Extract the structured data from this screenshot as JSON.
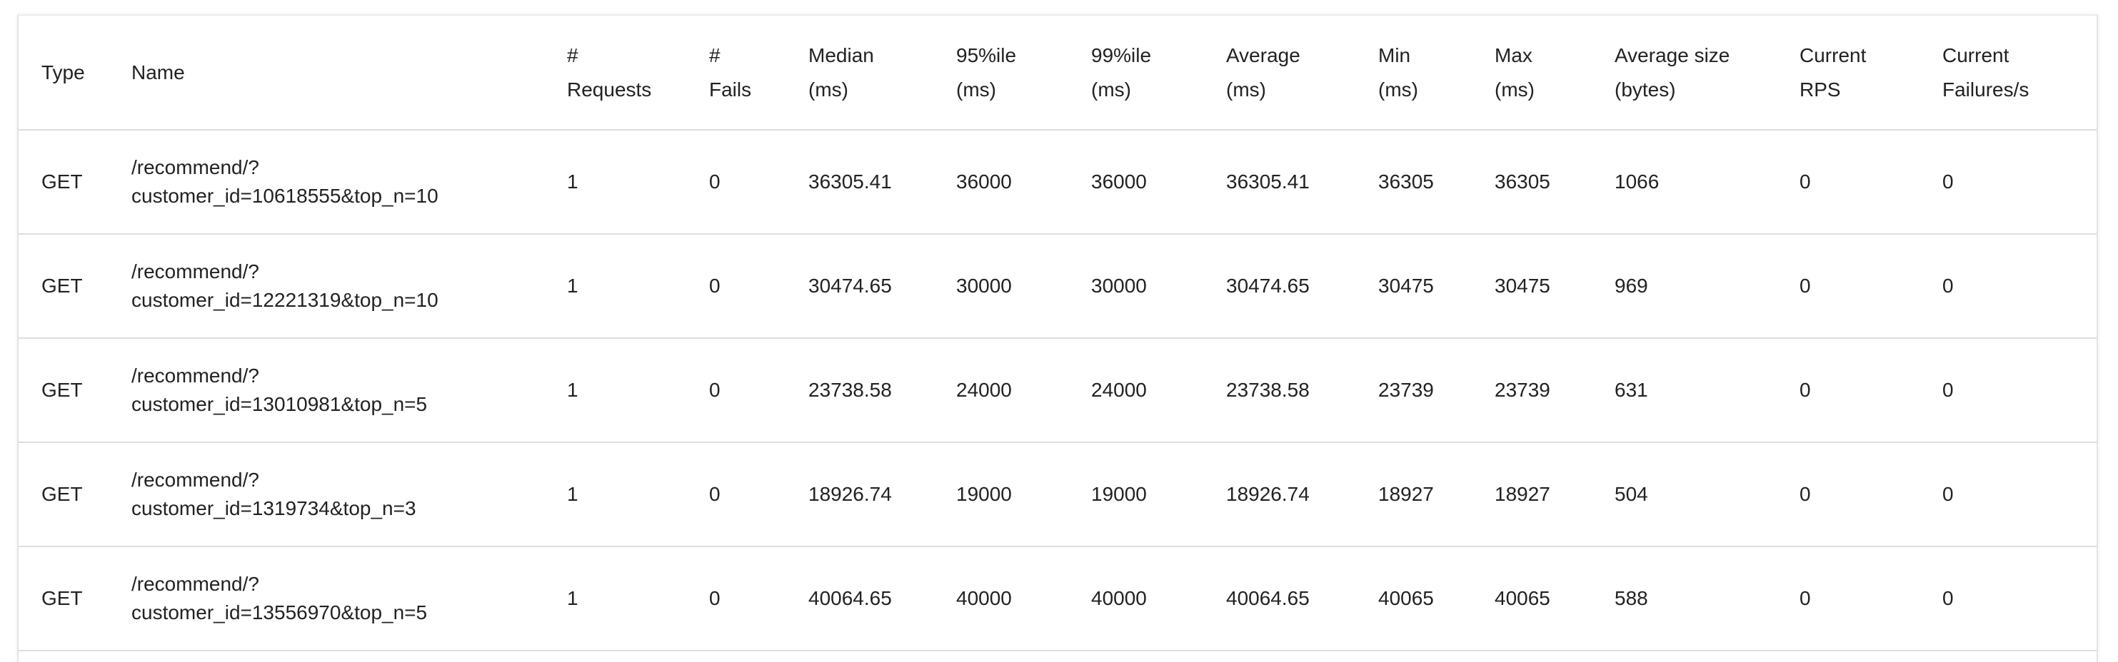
{
  "columns": [
    [
      "Type"
    ],
    [
      "Name"
    ],
    [
      "#",
      "Requests"
    ],
    [
      "#",
      "Fails"
    ],
    [
      "Median",
      "(ms)"
    ],
    [
      "95%ile",
      "(ms)"
    ],
    [
      "99%ile",
      "(ms)"
    ],
    [
      "Average",
      "(ms)"
    ],
    [
      "Min",
      "(ms)"
    ],
    [
      "Max",
      "(ms)"
    ],
    [
      "Average size",
      "(bytes)"
    ],
    [
      "Current",
      "RPS"
    ],
    [
      "Current",
      "Failures/s"
    ]
  ],
  "rows": [
    {
      "type": "GET",
      "name": [
        "/recommend/?",
        "customer_id=10618555&top_n=10"
      ],
      "requests": "1",
      "fails": "0",
      "median": "36305.41",
      "p95": "36000",
      "p99": "36000",
      "average": "36305.41",
      "min": "36305",
      "max": "36305",
      "avg_size": "1066",
      "rps": "0",
      "failures_s": "0"
    },
    {
      "type": "GET",
      "name": [
        "/recommend/?",
        "customer_id=12221319&top_n=10"
      ],
      "requests": "1",
      "fails": "0",
      "median": "30474.65",
      "p95": "30000",
      "p99": "30000",
      "average": "30474.65",
      "min": "30475",
      "max": "30475",
      "avg_size": "969",
      "rps": "0",
      "failures_s": "0"
    },
    {
      "type": "GET",
      "name": [
        "/recommend/?",
        "customer_id=13010981&top_n=5"
      ],
      "requests": "1",
      "fails": "0",
      "median": "23738.58",
      "p95": "24000",
      "p99": "24000",
      "average": "23738.58",
      "min": "23739",
      "max": "23739",
      "avg_size": "631",
      "rps": "0",
      "failures_s": "0"
    },
    {
      "type": "GET",
      "name": [
        "/recommend/?",
        "customer_id=1319734&top_n=3"
      ],
      "requests": "1",
      "fails": "0",
      "median": "18926.74",
      "p95": "19000",
      "p99": "19000",
      "average": "18926.74",
      "min": "18927",
      "max": "18927",
      "avg_size": "504",
      "rps": "0",
      "failures_s": "0"
    },
    {
      "type": "GET",
      "name": [
        "/recommend/?",
        "customer_id=13556970&top_n=5"
      ],
      "requests": "1",
      "fails": "0",
      "median": "40064.65",
      "p95": "40000",
      "p99": "40000",
      "average": "40064.65",
      "min": "40065",
      "max": "40065",
      "avg_size": "588",
      "rps": "0",
      "failures_s": "0"
    }
  ]
}
